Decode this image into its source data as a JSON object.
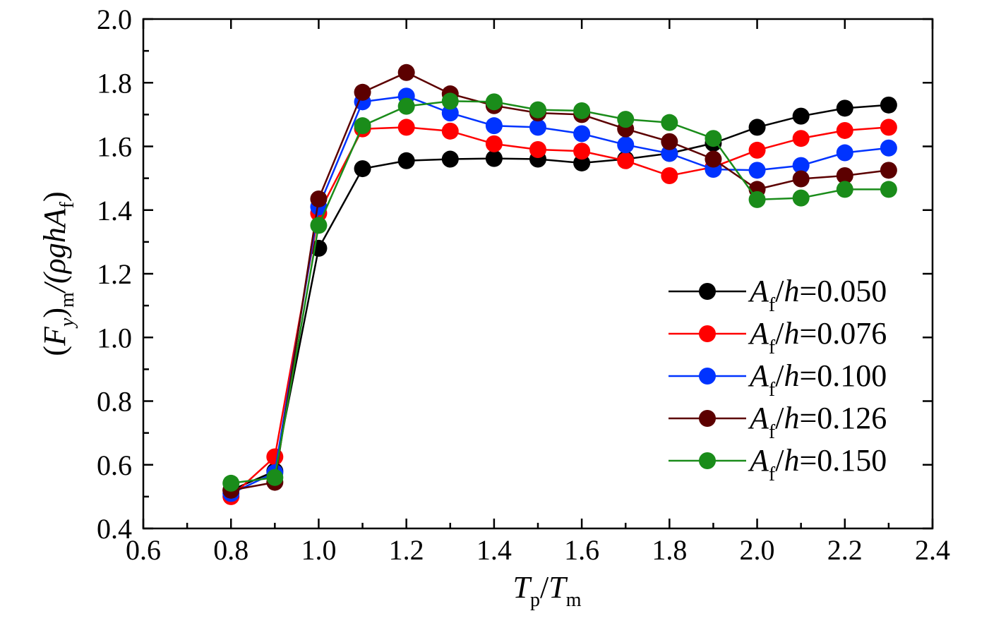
{
  "chart_data": {
    "type": "line",
    "xlabel": {
      "base1": "T",
      "sub1": "p",
      "slash": "/",
      "base2": "T",
      "sub2": "m"
    },
    "ylabel": {
      "open": "(",
      "base": "F",
      "sub1": "y",
      "close": ")",
      "sub2": "m",
      "rest": "/(ρgh",
      "base2": "A",
      "sub3": "f",
      "end": ")"
    },
    "xlim": [
      0.6,
      2.4
    ],
    "ylim": [
      0.4,
      2.0
    ],
    "xticks": [
      "0.6",
      "0.8",
      "1.0",
      "1.2",
      "1.4",
      "1.6",
      "1.8",
      "2.0",
      "2.2",
      "2.4"
    ],
    "yticks": [
      "0.4",
      "0.6",
      "0.8",
      "1.0",
      "1.2",
      "1.4",
      "1.6",
      "1.8",
      "2.0"
    ],
    "x": [
      0.8,
      0.9,
      1.0,
      1.1,
      1.2,
      1.3,
      1.4,
      1.5,
      1.6,
      1.7,
      1.8,
      1.9,
      2.0,
      2.1,
      2.2,
      2.3
    ],
    "series": [
      {
        "name": "Af/h=0.050",
        "label_value": "=0.050",
        "color": "#000000",
        "values": [
          0.52,
          0.58,
          1.28,
          1.53,
          1.555,
          1.56,
          1.562,
          1.56,
          1.548,
          1.56,
          1.578,
          1.61,
          1.66,
          1.695,
          1.72,
          1.73
        ]
      },
      {
        "name": "Af/h=0.076",
        "label_value": "=0.076",
        "color": "#ff0000",
        "values": [
          0.5,
          0.625,
          1.39,
          1.655,
          1.66,
          1.648,
          1.608,
          1.59,
          1.585,
          1.555,
          1.508,
          1.535,
          1.588,
          1.625,
          1.65,
          1.66
        ]
      },
      {
        "name": "Af/h=0.100",
        "label_value": "=0.100",
        "color": "#0033ff",
        "values": [
          0.51,
          0.575,
          1.41,
          1.74,
          1.758,
          1.705,
          1.665,
          1.66,
          1.64,
          1.605,
          1.578,
          1.528,
          1.525,
          1.54,
          1.58,
          1.595
        ]
      },
      {
        "name": "Af/h=0.126",
        "label_value": "=0.126",
        "color": "#5c0000",
        "values": [
          0.52,
          0.545,
          1.435,
          1.77,
          1.832,
          1.765,
          1.728,
          1.705,
          1.7,
          1.655,
          1.615,
          1.56,
          1.465,
          1.498,
          1.508,
          1.525
        ]
      },
      {
        "name": "Af/h=0.150",
        "label_value": "=0.150",
        "color": "#1a8c1a",
        "values": [
          0.542,
          0.56,
          1.352,
          1.665,
          1.726,
          1.742,
          1.74,
          1.715,
          1.712,
          1.685,
          1.675,
          1.625,
          1.433,
          1.438,
          1.465,
          1.465
        ]
      }
    ],
    "legend": {
      "position": "bottom-right",
      "base": "A",
      "sub": "f",
      "slash": "/",
      "var": "h"
    },
    "grid": false
  }
}
